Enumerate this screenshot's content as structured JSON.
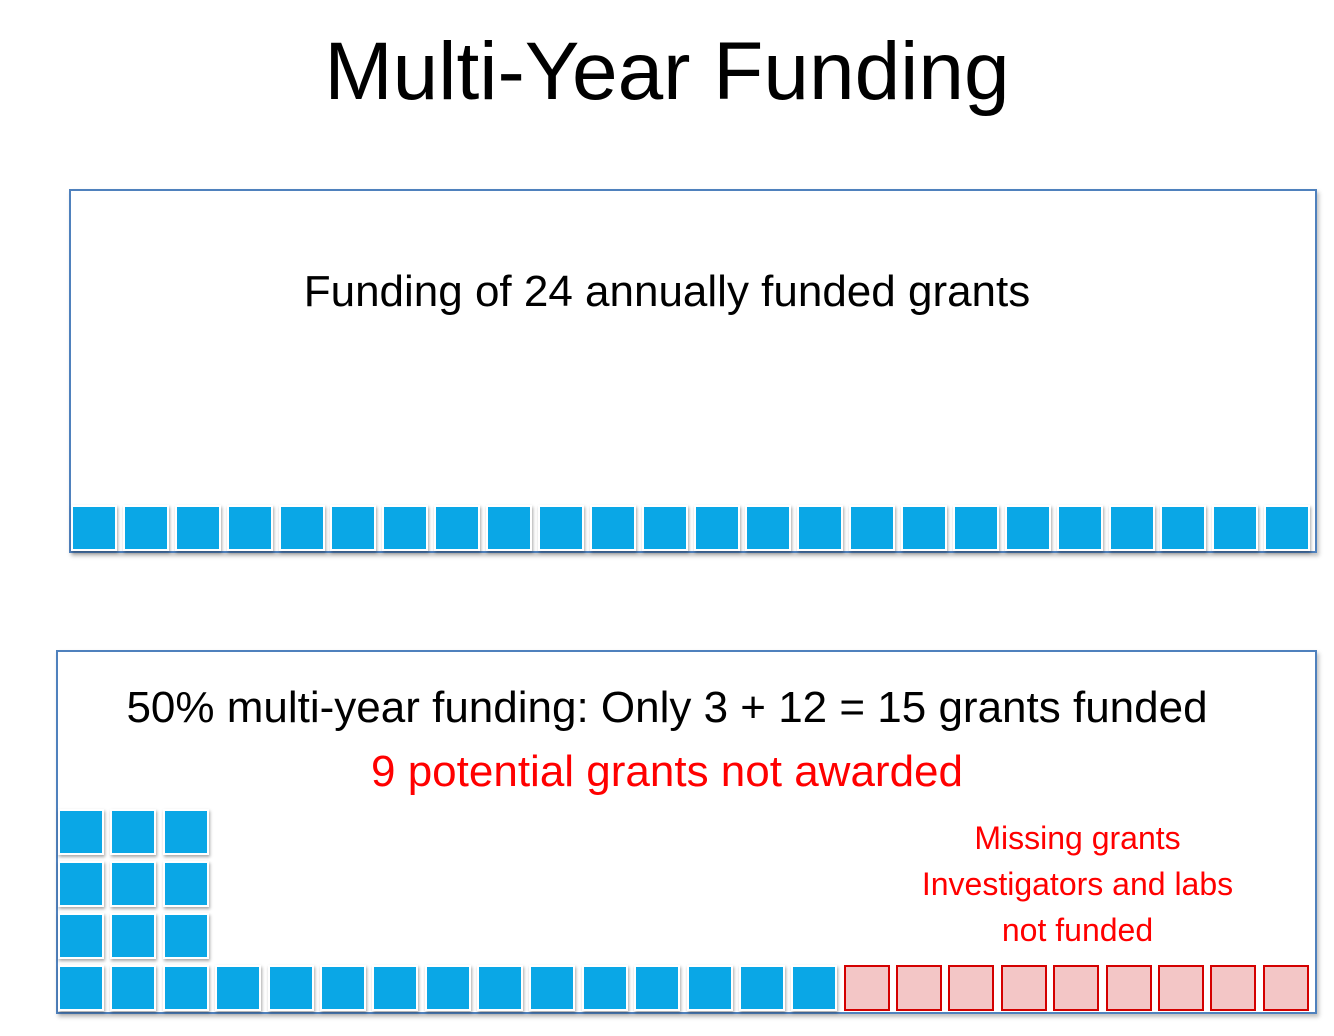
{
  "title": "Multi-Year Funding",
  "panel_annual": {
    "caption": "Funding of 24 annually funded grants",
    "grant_count": 24
  },
  "panel_multiyear": {
    "caption": "50% multi-year funding: Only 3 + 12 = 15 grants funded",
    "subcaption": "9 potential grants not awarded",
    "missing_note_lines": [
      "Missing grants",
      "Investigators and labs",
      "not funded"
    ],
    "multi_year_grants": 3,
    "annual_grants": 12,
    "missing_grants": 9
  },
  "colors": {
    "funded": "#0aa7e6",
    "missing_fill": "#f3c6c6",
    "missing_border": "#d40000",
    "panel_border": "#4f81bd",
    "alert_text": "#ff0000"
  }
}
